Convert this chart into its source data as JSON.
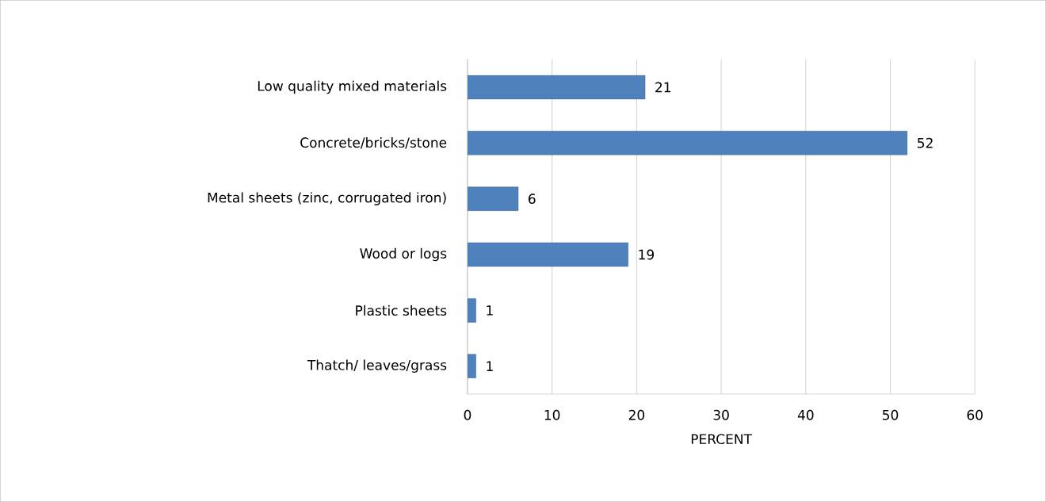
{
  "chart_data": {
    "type": "bar",
    "orientation": "horizontal",
    "xlabel": "PERCENT",
    "categories": [
      "Low quality mixed materials",
      "Concrete/bricks/stone",
      "Metal sheets (zinc, corrugated iron)",
      "Wood or logs",
      "Plastic sheets",
      "Thatch/ leaves/grass"
    ],
    "values": [
      21,
      52,
      6,
      19,
      1,
      1
    ],
    "color": "#4f81bd",
    "xlim": [
      0,
      60
    ],
    "xticks": [
      0,
      10,
      20,
      30,
      40,
      50,
      60
    ],
    "grid": "x",
    "data_labels": true
  }
}
